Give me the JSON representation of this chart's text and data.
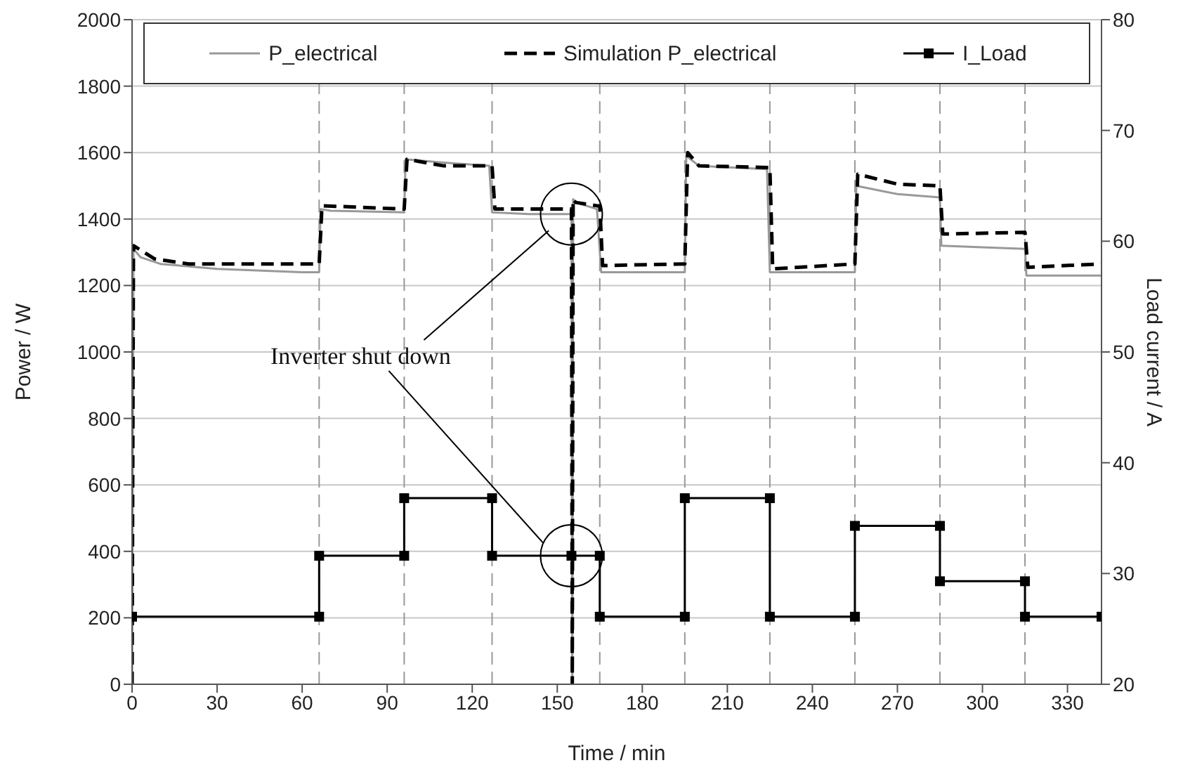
{
  "chart_data": {
    "type": "line",
    "xlabel": "Time / min",
    "ylabel": "Power / W",
    "y2label": "Load current / A",
    "xlim": [
      0,
      342
    ],
    "xticks": [
      0,
      30,
      60,
      90,
      120,
      150,
      180,
      210,
      240,
      270,
      300,
      330
    ],
    "ylim": [
      0,
      2000
    ],
    "yticks": [
      0,
      200,
      400,
      600,
      800,
      1000,
      1200,
      1400,
      1600,
      1800,
      2000
    ],
    "y2lim": [
      20,
      80
    ],
    "y2ticks": [
      20,
      30,
      40,
      50,
      60,
      70,
      80
    ],
    "grid": "y",
    "legend": "top",
    "ref_lines": [
      {
        "axis": "x",
        "value": 66,
        "color": "#999999",
        "line_style": "dashed"
      },
      {
        "axis": "x",
        "value": 96,
        "color": "#999999",
        "line_style": "dashed"
      },
      {
        "axis": "x",
        "value": 127,
        "color": "#999999",
        "line_style": "dashed"
      },
      {
        "axis": "x",
        "value": 165,
        "color": "#999999",
        "line_style": "dashed"
      },
      {
        "axis": "x",
        "value": 195,
        "color": "#999999",
        "line_style": "dashed"
      },
      {
        "axis": "x",
        "value": 225,
        "color": "#999999",
        "line_style": "dashed"
      },
      {
        "axis": "x",
        "value": 255,
        "color": "#999999",
        "line_style": "dashed"
      },
      {
        "axis": "x",
        "value": 285,
        "color": "#999999",
        "line_style": "dashed"
      },
      {
        "axis": "x",
        "value": 315,
        "color": "#999999",
        "line_style": "dashed"
      }
    ],
    "annotations": [
      {
        "text": "Inverter shut down",
        "x": 147,
        "y": 1365
      }
    ],
    "series": [
      {
        "name": "P_electrical",
        "color": "#999999",
        "marker": "none",
        "line_style": "solid",
        "x": [
          0,
          0.5,
          3,
          10,
          30,
          60,
          66,
          66.5,
          70,
          96,
          96.5,
          110,
          126,
          127,
          140,
          155,
          155.3,
          155.6,
          156.5,
          164,
          165.5,
          180,
          195,
          195.5,
          200,
          224,
          225,
          240,
          255,
          255.5,
          270,
          285,
          285.5,
          300,
          315,
          315.5,
          330,
          342
        ],
        "values": [
          0,
          1310,
          1285,
          1265,
          1250,
          1240,
          1240,
          1430,
          1425,
          1420,
          1580,
          1570,
          1560,
          1420,
          1415,
          1415,
          0,
          1460,
          1450,
          1430,
          1240,
          1240,
          1240,
          1590,
          1560,
          1550,
          1240,
          1240,
          1240,
          1500,
          1475,
          1465,
          1320,
          1315,
          1310,
          1230,
          1230,
          1230
        ]
      },
      {
        "name": "Simulation P_electrical",
        "color": "#000000",
        "marker": "none",
        "line_style": "dashed",
        "x": [
          0,
          0.5,
          8,
          20,
          66,
          67,
          96,
          97,
          110,
          127,
          128,
          155,
          155.3,
          155.6,
          156.5,
          164,
          165,
          166,
          195,
          196,
          200,
          225,
          226,
          255,
          256,
          270,
          285,
          286,
          315,
          316,
          342
        ],
        "values": [
          0,
          1320,
          1280,
          1265,
          1265,
          1440,
          1430,
          1580,
          1560,
          1560,
          1430,
          1430,
          0,
          1460,
          1450,
          1440,
          1440,
          1260,
          1265,
          1600,
          1560,
          1555,
          1250,
          1265,
          1535,
          1505,
          1500,
          1355,
          1360,
          1255,
          1265
        ]
      },
      {
        "name": "I_Load",
        "axis": "y2",
        "color": "#000000",
        "marker": "square",
        "line_style": "solid",
        "x": [
          0,
          66,
          66,
          96,
          96,
          127,
          127,
          155,
          165,
          165,
          195,
          195,
          225,
          225,
          255,
          255,
          285,
          285,
          315,
          315,
          342
        ],
        "values": [
          26.1,
          26.1,
          31.6,
          31.6,
          36.8,
          36.8,
          31.6,
          31.6,
          31.6,
          26.1,
          26.1,
          36.8,
          36.8,
          26.1,
          26.1,
          34.3,
          34.3,
          29.3,
          29.3,
          26.1,
          26.1
        ]
      }
    ]
  }
}
